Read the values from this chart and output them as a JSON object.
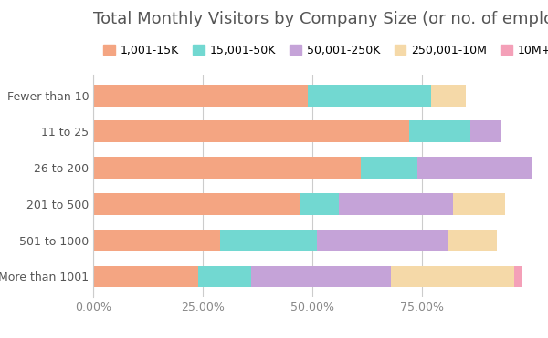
{
  "title": "Total Monthly Visitors by Company Size (or no. of employees)",
  "categories": [
    "Fewer than 10",
    "11 to 25",
    "26 to 200",
    "201 to 500",
    "501 to 1000",
    "More than 1001"
  ],
  "series": [
    {
      "label": "1,001-15K",
      "color": "#F4A582",
      "values": [
        49.0,
        72.0,
        61.0,
        47.0,
        29.0,
        24.0
      ]
    },
    {
      "label": "15,001-50K",
      "color": "#72D8D1",
      "values": [
        28.0,
        14.0,
        13.0,
        9.0,
        22.0,
        12.0
      ]
    },
    {
      "label": "50,001-250K",
      "color": "#C5A3D8",
      "values": [
        0.0,
        7.0,
        26.0,
        26.0,
        30.0,
        32.0
      ]
    },
    {
      "label": "250,001-10M",
      "color": "#F5D9A8",
      "values": [
        8.0,
        0.0,
        0.0,
        12.0,
        11.0,
        28.0
      ]
    },
    {
      "label": "10M+",
      "color": "#F4A0B8",
      "values": [
        0.0,
        0.0,
        0.0,
        0.0,
        0.0,
        2.0
      ]
    }
  ],
  "xlim": [
    0,
    100
  ],
  "xticks": [
    0,
    25,
    50,
    75
  ],
  "background_color": "#ffffff",
  "title_fontsize": 13,
  "tick_fontsize": 9,
  "legend_fontsize": 9,
  "bar_height": 0.6,
  "grid_color": "#cccccc",
  "title_color": "#555555",
  "ytick_color": "#555555",
  "xtick_color": "#888888"
}
